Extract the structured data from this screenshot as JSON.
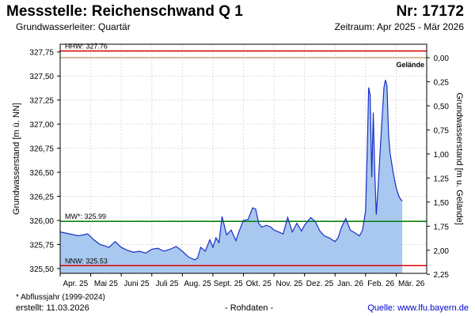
{
  "header": {
    "title": "Messstelle: Reichenschwand Q 1",
    "number": "Nr: 17172",
    "aquifer": "Grundwasserleiter: Quartär",
    "period": "Zeitraum: Apr 2025 - Mär 2026"
  },
  "footer": {
    "note": "* Abflussjahr (1999-2024)",
    "created": "erstellt:  11.03.2026",
    "raw": "- Rohdaten -",
    "source": "Quelle: www.lfu.bayern.de"
  },
  "colors": {
    "area_fill": "#a9c8ef",
    "line": "#1830c8",
    "hhw": "#e00000",
    "nnw": "#e00000",
    "mw": "#008000",
    "ground": "#c8a070",
    "grid": "#dcdcdc"
  },
  "chart_data": {
    "type": "area",
    "ylabel": "Grundwasserstand [m ü. NN]",
    "ylabel_right": "Grundwasserstand [m u. Gelände]",
    "ylim": [
      325.45,
      327.83
    ],
    "yticks": [
      "327,75",
      "327,50",
      "327,25",
      "327,00",
      "326,75",
      "326,50",
      "326,25",
      "326,00",
      "325,75",
      "325,50"
    ],
    "yticks_right": [
      "0,00",
      "0,25",
      "0,50",
      "0,75",
      "1,00",
      "1,25",
      "1,50",
      "1,75",
      "2,00",
      "2,25"
    ],
    "ground_level": 327.69,
    "ground_label": "Gelände",
    "months": [
      "Apr. 25",
      "Mai 25",
      "Juni 25",
      "Juli 25",
      "Aug. 25",
      "Sept. 25",
      "Okt. 25",
      "Nov. 25",
      "Dez. 25",
      "Jan. 26",
      "Feb. 26",
      "Mär. 26"
    ],
    "reference_lines": [
      {
        "label": "HHW: 327.76",
        "value": 327.76
      },
      {
        "label": "MW*: 325.99",
        "value": 325.99
      },
      {
        "label": "NNW: 325.53",
        "value": 325.53
      }
    ],
    "series": [
      {
        "x": [
          0,
          0.3,
          0.6,
          0.9,
          1.1,
          1.3,
          1.6,
          1.8,
          2.0,
          2.2,
          2.4,
          2.6,
          2.8,
          3.0,
          3.2,
          3.4,
          3.6,
          3.8,
          4.0,
          4.2,
          4.4,
          4.5,
          4.6,
          4.75,
          4.9,
          5.0,
          5.1,
          5.2,
          5.3,
          5.45,
          5.6,
          5.75,
          5.85,
          6.0,
          6.15,
          6.3,
          6.4,
          6.5,
          6.6,
          6.75,
          6.9,
          7.0,
          7.15,
          7.3,
          7.45,
          7.6,
          7.75,
          7.9,
          8.0,
          8.1,
          8.2,
          8.35,
          8.5,
          8.65,
          8.8,
          8.9,
          9.0,
          9.1,
          9.2,
          9.35,
          9.5,
          9.6,
          9.7,
          9.8,
          9.9,
          10.0,
          10.05,
          10.1,
          10.15,
          10.2,
          10.25,
          10.3,
          10.35,
          10.4,
          10.5,
          10.6,
          10.65,
          10.7,
          10.75,
          10.8,
          10.9,
          11.0,
          11.1,
          11.2
        ],
        "y": [
          325.88,
          325.86,
          325.84,
          325.86,
          325.8,
          325.75,
          325.72,
          325.78,
          325.72,
          325.69,
          325.67,
          325.68,
          325.66,
          325.7,
          325.71,
          325.68,
          325.7,
          325.73,
          325.68,
          325.62,
          325.59,
          325.61,
          325.72,
          325.68,
          325.8,
          325.72,
          325.82,
          325.77,
          326.04,
          325.85,
          325.9,
          325.79,
          325.88,
          326.0,
          326.01,
          326.13,
          326.12,
          325.97,
          325.93,
          325.95,
          325.93,
          325.9,
          325.88,
          325.86,
          326.03,
          325.88,
          325.97,
          325.89,
          325.95,
          325.99,
          326.03,
          325.99,
          325.89,
          325.84,
          325.82,
          325.8,
          325.78,
          325.82,
          325.92,
          326.02,
          325.9,
          325.88,
          325.86,
          325.84,
          325.9,
          326.1,
          326.7,
          327.38,
          327.3,
          326.45,
          327.12,
          326.5,
          326.06,
          326.3,
          326.85,
          327.38,
          327.46,
          327.4,
          326.9,
          326.7,
          326.5,
          326.34,
          326.24,
          326.2
        ]
      }
    ]
  }
}
